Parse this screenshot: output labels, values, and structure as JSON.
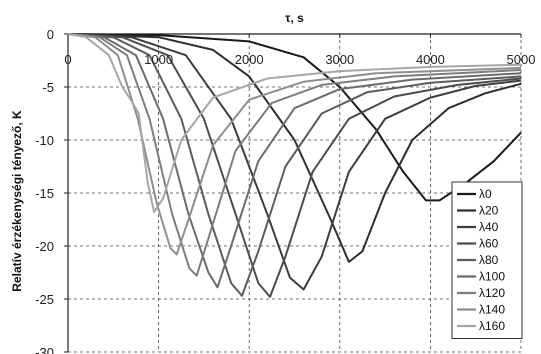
{
  "chart_data": {
    "type": "line",
    "title": "",
    "xlabel": "τ, s",
    "ylabel": "Relatív érzékenységi tényező, K",
    "xlim": [
      0,
      5000
    ],
    "ylim": [
      -30,
      0
    ],
    "x_ticks": [
      "0",
      "1000",
      "2000",
      "3000",
      "4000",
      "5000"
    ],
    "y_ticks": [
      "0",
      "-5",
      "-10",
      "-15",
      "-20",
      "-25",
      "-30"
    ],
    "grid": true,
    "legend_position": "right",
    "series": [
      {
        "name": "λ0",
        "color": "#1a1a1a",
        "points": [
          [
            0,
            0
          ],
          [
            1000,
            -0.1
          ],
          [
            2000,
            -0.7
          ],
          [
            2600,
            -2.2
          ],
          [
            3000,
            -5
          ],
          [
            3400,
            -9
          ],
          [
            3700,
            -13
          ],
          [
            3950,
            -15.7
          ],
          [
            4100,
            -15.7
          ],
          [
            4400,
            -14
          ],
          [
            4700,
            -12
          ],
          [
            5000,
            -9.3
          ]
        ]
      },
      {
        "name": "λ20",
        "color": "#2e2e2e",
        "points": [
          [
            0,
            0
          ],
          [
            1000,
            -0.3
          ],
          [
            1600,
            -1.5
          ],
          [
            2000,
            -4
          ],
          [
            2500,
            -10
          ],
          [
            2900,
            -17.5
          ],
          [
            3100,
            -21.5
          ],
          [
            3250,
            -20.5
          ],
          [
            3500,
            -15
          ],
          [
            3800,
            -10
          ],
          [
            4200,
            -7
          ],
          [
            4600,
            -5.6
          ],
          [
            5000,
            -4.7
          ]
        ]
      },
      {
        "name": "λ40",
        "color": "#3d3d3d",
        "points": [
          [
            0,
            0
          ],
          [
            700,
            -0.3
          ],
          [
            1300,
            -2
          ],
          [
            1800,
            -8
          ],
          [
            2200,
            -17
          ],
          [
            2450,
            -23
          ],
          [
            2600,
            -24.1
          ],
          [
            2800,
            -21
          ],
          [
            3100,
            -13
          ],
          [
            3500,
            -8
          ],
          [
            4000,
            -6
          ],
          [
            4500,
            -4.9
          ],
          [
            5000,
            -4.4
          ]
        ]
      },
      {
        "name": "λ60",
        "color": "#4c4c4c",
        "points": [
          [
            0,
            0
          ],
          [
            600,
            -0.3
          ],
          [
            1100,
            -2
          ],
          [
            1500,
            -8
          ],
          [
            1850,
            -17
          ],
          [
            2100,
            -23.5
          ],
          [
            2230,
            -24.8
          ],
          [
            2400,
            -21
          ],
          [
            2700,
            -13
          ],
          [
            3100,
            -8
          ],
          [
            3600,
            -5.9
          ],
          [
            4300,
            -4.8
          ],
          [
            5000,
            -4.2
          ]
        ]
      },
      {
        "name": "λ80",
        "color": "#5c5c5c",
        "points": [
          [
            0,
            0
          ],
          [
            500,
            -0.3
          ],
          [
            900,
            -2
          ],
          [
            1250,
            -8
          ],
          [
            1550,
            -17
          ],
          [
            1800,
            -23.5
          ],
          [
            1920,
            -24.7
          ],
          [
            2100,
            -20.5
          ],
          [
            2400,
            -12.5
          ],
          [
            2800,
            -7.5
          ],
          [
            3300,
            -5.5
          ],
          [
            4000,
            -4.6
          ],
          [
            5000,
            -4
          ]
        ]
      },
      {
        "name": "λ100",
        "color": "#6c6c6c",
        "points": [
          [
            0,
            0
          ],
          [
            400,
            -0.3
          ],
          [
            750,
            -2
          ],
          [
            1050,
            -8
          ],
          [
            1330,
            -17
          ],
          [
            1550,
            -22.5
          ],
          [
            1650,
            -23.9
          ],
          [
            1800,
            -20
          ],
          [
            2100,
            -12
          ],
          [
            2500,
            -7
          ],
          [
            3000,
            -5.2
          ],
          [
            3800,
            -4.3
          ],
          [
            5000,
            -3.7
          ]
        ]
      },
      {
        "name": "λ120",
        "color": "#7d7d7d",
        "points": [
          [
            0,
            0
          ],
          [
            350,
            -0.3
          ],
          [
            650,
            -2
          ],
          [
            900,
            -8
          ],
          [
            1150,
            -17
          ],
          [
            1340,
            -22.1
          ],
          [
            1420,
            -22.8
          ],
          [
            1560,
            -19
          ],
          [
            1850,
            -11
          ],
          [
            2250,
            -6.5
          ],
          [
            2800,
            -4.8
          ],
          [
            3600,
            -4
          ],
          [
            5000,
            -3.4
          ]
        ]
      },
      {
        "name": "λ140",
        "color": "#8e8e8e",
        "points": [
          [
            0,
            0
          ],
          [
            300,
            -0.3
          ],
          [
            550,
            -2
          ],
          [
            770,
            -8
          ],
          [
            980,
            -16
          ],
          [
            1130,
            -20.2
          ],
          [
            1200,
            -20.8
          ],
          [
            1330,
            -17.5
          ],
          [
            1600,
            -10.5
          ],
          [
            2000,
            -6.2
          ],
          [
            2600,
            -4.5
          ],
          [
            3400,
            -3.7
          ],
          [
            5000,
            -3.2
          ]
        ]
      },
      {
        "name": "λ160",
        "color": "#a6a6a6",
        "points": [
          [
            0,
            0
          ],
          [
            200,
            -0.3
          ],
          [
            450,
            -2
          ],
          [
            600,
            -5
          ],
          [
            700,
            -6.3
          ],
          [
            780,
            -7.5
          ],
          [
            880,
            -14
          ],
          [
            950,
            -16.8
          ],
          [
            1050,
            -15.5
          ],
          [
            1250,
            -10
          ],
          [
            1600,
            -6
          ],
          [
            2200,
            -4.2
          ],
          [
            3000,
            -3.5
          ],
          [
            4000,
            -3.1
          ],
          [
            5000,
            -2.9
          ]
        ]
      }
    ]
  }
}
